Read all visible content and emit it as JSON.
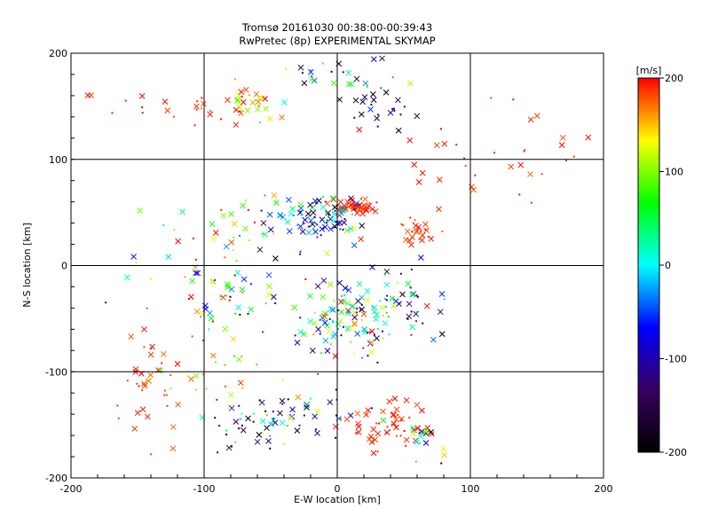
{
  "chart_data": {
    "type": "scatter",
    "title": "Tromsø 20161030 00:38:00-00:39:43",
    "subtitle": "RwPretec (8p) EXPERIMENTAL SKYMAP",
    "xlabel": "E-W location [km]",
    "ylabel": "N-S location [km]",
    "xlim": [
      -200,
      200
    ],
    "ylim": [
      -200,
      200
    ],
    "xticks": [
      "-200",
      "-100",
      "0",
      "100",
      "200"
    ],
    "yticks": [
      "-200",
      "-100",
      "0",
      "100",
      "200"
    ],
    "grid": true,
    "colorbar": {
      "label": "[m/s]",
      "range": [
        -200,
        200
      ],
      "ticks": [
        "-200",
        "-100",
        "0",
        "100",
        "200"
      ],
      "colormap": [
        "#000000",
        "#3a0060",
        "#0000ff",
        "#00ffff",
        "#00ff00",
        "#ffff00",
        "#ff0000"
      ]
    },
    "markers": [
      "cross",
      "dot"
    ],
    "clusters": [
      {
        "x": 12,
        "y": 55,
        "sx": 10,
        "sy": 4,
        "n": 55,
        "v_mean": 190,
        "v_sd": 8
      },
      {
        "x": 58,
        "y": 32,
        "sx": 9,
        "sy": 8,
        "n": 30,
        "v_mean": 185,
        "v_sd": 10
      },
      {
        "x": 35,
        "y": 150,
        "sx": 12,
        "sy": 10,
        "n": 22,
        "v_mean": -150,
        "v_sd": 40
      },
      {
        "x": 5,
        "y": 180,
        "sx": 25,
        "sy": 12,
        "n": 30,
        "v_mean": -60,
        "v_sd": 120
      },
      {
        "x": -65,
        "y": 155,
        "sx": 10,
        "sy": 7,
        "n": 28,
        "v_mean": 145,
        "v_sd": 40
      },
      {
        "x": -120,
        "y": 150,
        "sx": 30,
        "sy": 10,
        "n": 25,
        "v_mean": 190,
        "v_sd": 10
      },
      {
        "x": 95,
        "y": 100,
        "sx": 50,
        "sy": 20,
        "n": 25,
        "v_mean": 190,
        "v_sd": 10
      },
      {
        "x": -10,
        "y": 45,
        "sx": 15,
        "sy": 12,
        "n": 70,
        "v_mean": -40,
        "v_sd": 100
      },
      {
        "x": -45,
        "y": 40,
        "sx": 20,
        "sy": 12,
        "n": 30,
        "v_mean": 50,
        "v_sd": 120
      },
      {
        "x": -90,
        "y": 30,
        "sx": 25,
        "sy": 20,
        "n": 18,
        "v_mean": 140,
        "v_sd": 80
      },
      {
        "x": 10,
        "y": -50,
        "sx": 22,
        "sy": 18,
        "n": 120,
        "v_mean": 20,
        "v_sd": 110
      },
      {
        "x": 55,
        "y": -30,
        "sx": 12,
        "sy": 18,
        "n": 35,
        "v_mean": -90,
        "v_sd": 110
      },
      {
        "x": -95,
        "y": -30,
        "sx": 30,
        "sy": 25,
        "n": 40,
        "v_mean": 60,
        "v_sd": 100
      },
      {
        "x": -140,
        "y": -110,
        "sx": 12,
        "sy": 30,
        "n": 35,
        "v_mean": 190,
        "v_sd": 10
      },
      {
        "x": -95,
        "y": -100,
        "sx": 25,
        "sy": 15,
        "n": 30,
        "v_mean": 150,
        "v_sd": 60
      },
      {
        "x": -65,
        "y": -155,
        "sx": 18,
        "sy": 12,
        "n": 35,
        "v_mean": -90,
        "v_sd": 100
      },
      {
        "x": -20,
        "y": -140,
        "sx": 25,
        "sy": 12,
        "n": 30,
        "v_mean": -100,
        "v_sd": 100
      },
      {
        "x": 40,
        "y": -150,
        "sx": 18,
        "sy": 12,
        "n": 55,
        "v_mean": 190,
        "v_sd": 10
      },
      {
        "x": 70,
        "y": -160,
        "sx": 10,
        "sy": 10,
        "n": 15,
        "v_mean": 20,
        "v_sd": 100
      },
      {
        "x": 150,
        "y": 130,
        "sx": 25,
        "sy": 20,
        "n": 10,
        "v_mean": 190,
        "v_sd": 10
      },
      {
        "x": -80,
        "y": -20,
        "sx": 20,
        "sy": 20,
        "n": 20,
        "v_mean": -60,
        "v_sd": 120
      }
    ]
  }
}
